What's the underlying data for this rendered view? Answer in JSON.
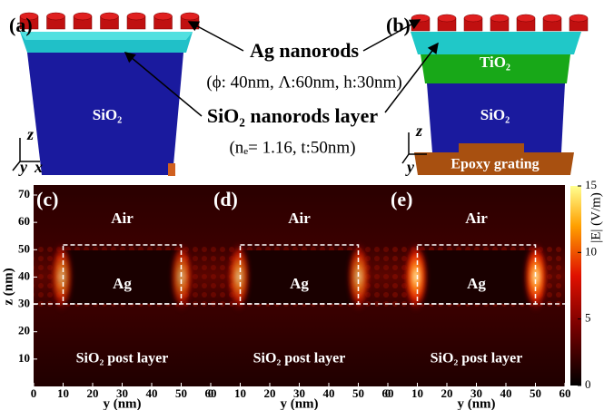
{
  "top": {
    "a": {
      "label": "(a)",
      "material": "SiO₂"
    },
    "b": {
      "label": "(b)",
      "layers": [
        "TiO₂",
        "SiO₂",
        "Epoxy grating"
      ]
    },
    "axes": [
      "z",
      "y",
      "x"
    ]
  },
  "callouts": {
    "rods": "Ag nanorods",
    "rods_params": "(ϕ: 40nm, Λ:60nm, h:30nm)",
    "layer": "SiO₂ nanorods layer",
    "layer_params": "(nₑ= 1.16, t:50nm)"
  },
  "maps": {
    "panels": [
      "(c)",
      "(d)",
      "(e)"
    ],
    "regions": {
      "air": "Air",
      "metal": "Ag",
      "substrate": "SiO₂ post layer"
    },
    "xlabel": "y (nm)",
    "ylabel": "z (nm)",
    "xlim": [
      0,
      60
    ],
    "xticks": [
      0,
      10,
      20,
      30,
      40,
      50,
      60
    ],
    "ylim": [
      0,
      70
    ],
    "yticks": [
      10,
      20,
      30,
      40,
      50,
      60,
      70
    ],
    "colorbar": {
      "label": "|E| (V/m)",
      "lim": [
        0,
        15
      ],
      "ticks": [
        0,
        5,
        10,
        15
      ]
    }
  }
}
